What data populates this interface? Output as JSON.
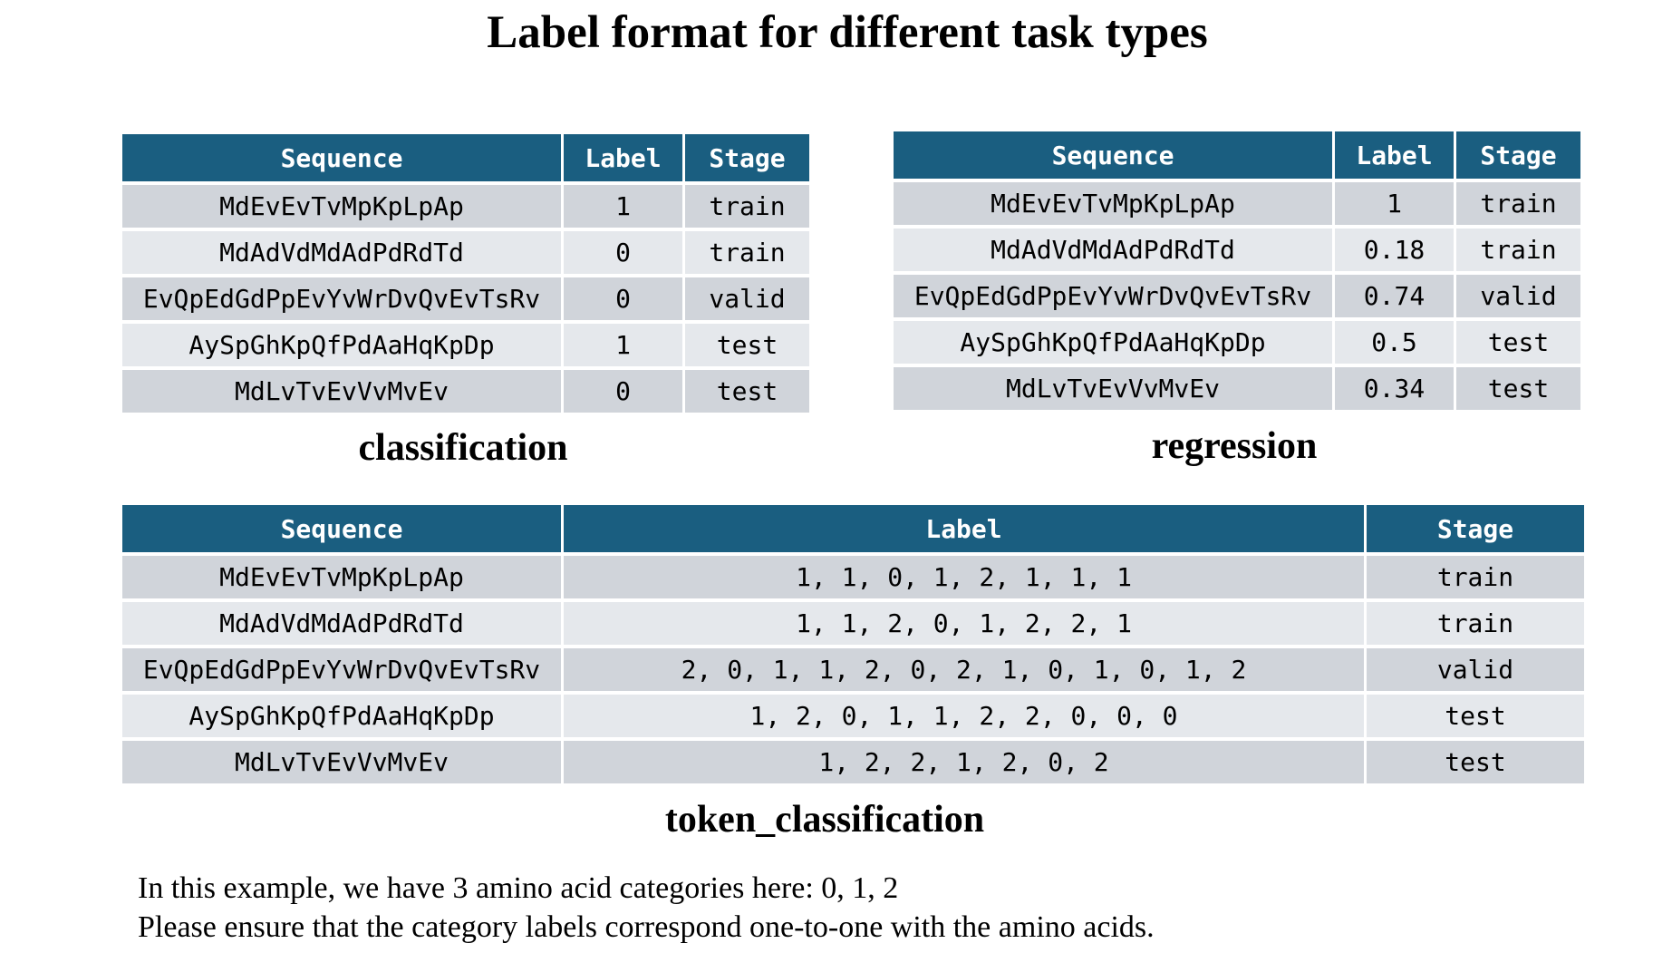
{
  "title": "Label format for different task types",
  "headers": {
    "sequence": "Sequence",
    "label": "Label",
    "stage": "Stage"
  },
  "classification": {
    "caption": "classification",
    "rows": [
      {
        "sequence": "MdEvEvTvMpKpLpAp",
        "label": "1",
        "stage": "train"
      },
      {
        "sequence": "MdAdVdMdAdPdRdTd",
        "label": "0",
        "stage": "train"
      },
      {
        "sequence": "EvQpEdGdPpEvYvWrDvQvEvTsRv",
        "label": "0",
        "stage": "valid"
      },
      {
        "sequence": "AySpGhKpQfPdAaHqKpDp",
        "label": "1",
        "stage": "test"
      },
      {
        "sequence": "MdLvTvEvVvMvEv",
        "label": "0",
        "stage": "test"
      }
    ]
  },
  "regression": {
    "caption": "regression",
    "rows": [
      {
        "sequence": "MdEvEvTvMpKpLpAp",
        "label": "1",
        "stage": "train"
      },
      {
        "sequence": "MdAdVdMdAdPdRdTd",
        "label": "0.18",
        "stage": "train"
      },
      {
        "sequence": "EvQpEdGdPpEvYvWrDvQvEvTsRv",
        "label": "0.74",
        "stage": "valid"
      },
      {
        "sequence": "AySpGhKpQfPdAaHqKpDp",
        "label": "0.5",
        "stage": "test"
      },
      {
        "sequence": "MdLvTvEvVvMvEv",
        "label": "0.34",
        "stage": "test"
      }
    ]
  },
  "token_classification": {
    "caption": "token_classification",
    "rows": [
      {
        "sequence": "MdEvEvTvMpKpLpAp",
        "label": "1, 1, 0, 1, 2, 1, 1, 1",
        "stage": "train"
      },
      {
        "sequence": "MdAdVdMdAdPdRdTd",
        "label": "1, 1, 2, 0, 1, 2, 2, 1",
        "stage": "train"
      },
      {
        "sequence": "EvQpEdGdPpEvYvWrDvQvEvTsRv",
        "label": "2, 0, 1, 1, 2, 0, 2, 1, 0, 1, 0, 1, 2",
        "stage": "valid"
      },
      {
        "sequence": "AySpGhKpQfPdAaHqKpDp",
        "label": "1, 2, 0, 1, 1, 2, 2, 0, 0, 0",
        "stage": "test"
      },
      {
        "sequence": "MdLvTvEvVvMvEv",
        "label": "1, 2, 2, 1, 2, 0, 2",
        "stage": "test"
      }
    ]
  },
  "notes": [
    "In this example, we have 3 amino acid categories here: 0, 1, 2",
    "Please ensure that the category labels correspond one-to-one with the amino acids."
  ]
}
